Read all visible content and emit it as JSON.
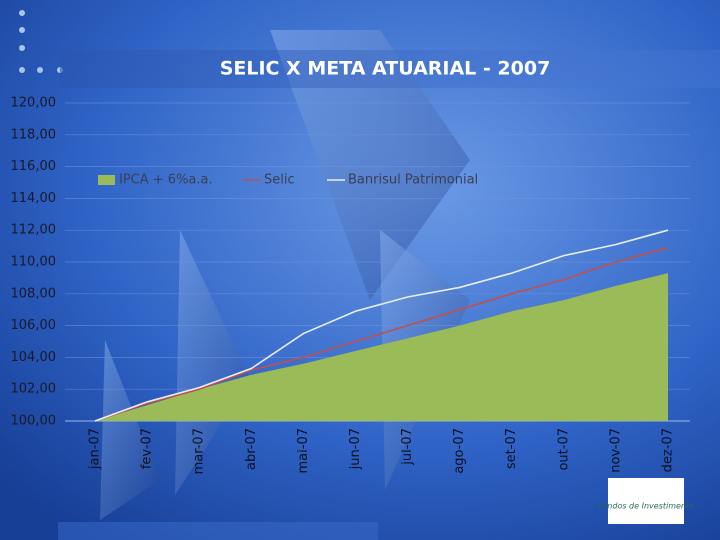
{
  "chart_data": {
    "type": "area-line",
    "title": "SELIC X META ATUARIAL - 2007",
    "logo": "Fundos de Investimento",
    "categories": [
      "jan-07",
      "fev-07",
      "mar-07",
      "abr-07",
      "mai-07",
      "jun-07",
      "jul-07",
      "ago-07",
      "set-07",
      "out-07",
      "nov-07",
      "dez-07"
    ],
    "series": [
      {
        "name": "IPCA + 6%a.a.",
        "color": "#9bbb59",
        "kind": "area",
        "values": [
          100,
          101.0,
          102.0,
          102.9,
          103.6,
          104.4,
          105.2,
          106.0,
          106.9,
          107.6,
          108.5,
          109.3
        ]
      },
      {
        "name": "Selic",
        "color": "#c0504d",
        "kind": "line",
        "values": [
          100,
          101.1,
          102.0,
          103.2,
          104.0,
          105.0,
          106.0,
          107.0,
          108.0,
          108.9,
          110.0,
          110.9
        ]
      },
      {
        "name": "Banrisul Patrimonial",
        "color": "#e8eef8",
        "kind": "line",
        "values": [
          100,
          101.2,
          102.1,
          103.3,
          105.5,
          106.9,
          107.8,
          108.4,
          109.3,
          110.4,
          111.1,
          112.0
        ]
      }
    ],
    "ylim": [
      100,
      120
    ],
    "yticks": [
      {
        "value": 100,
        "label": "100,00"
      },
      {
        "value": 102,
        "label": "102,00"
      },
      {
        "value": 104,
        "label": "104,00"
      },
      {
        "value": 106,
        "label": "106,00"
      },
      {
        "value": 108,
        "label": "108,00"
      },
      {
        "value": 110,
        "label": "110,00"
      },
      {
        "value": 112,
        "label": "112,00"
      },
      {
        "value": 114,
        "label": "114,00"
      },
      {
        "value": 116,
        "label": "116,00"
      },
      {
        "value": 118,
        "label": "118,00"
      },
      {
        "value": 120,
        "label": "120,00"
      }
    ],
    "grid": true
  }
}
